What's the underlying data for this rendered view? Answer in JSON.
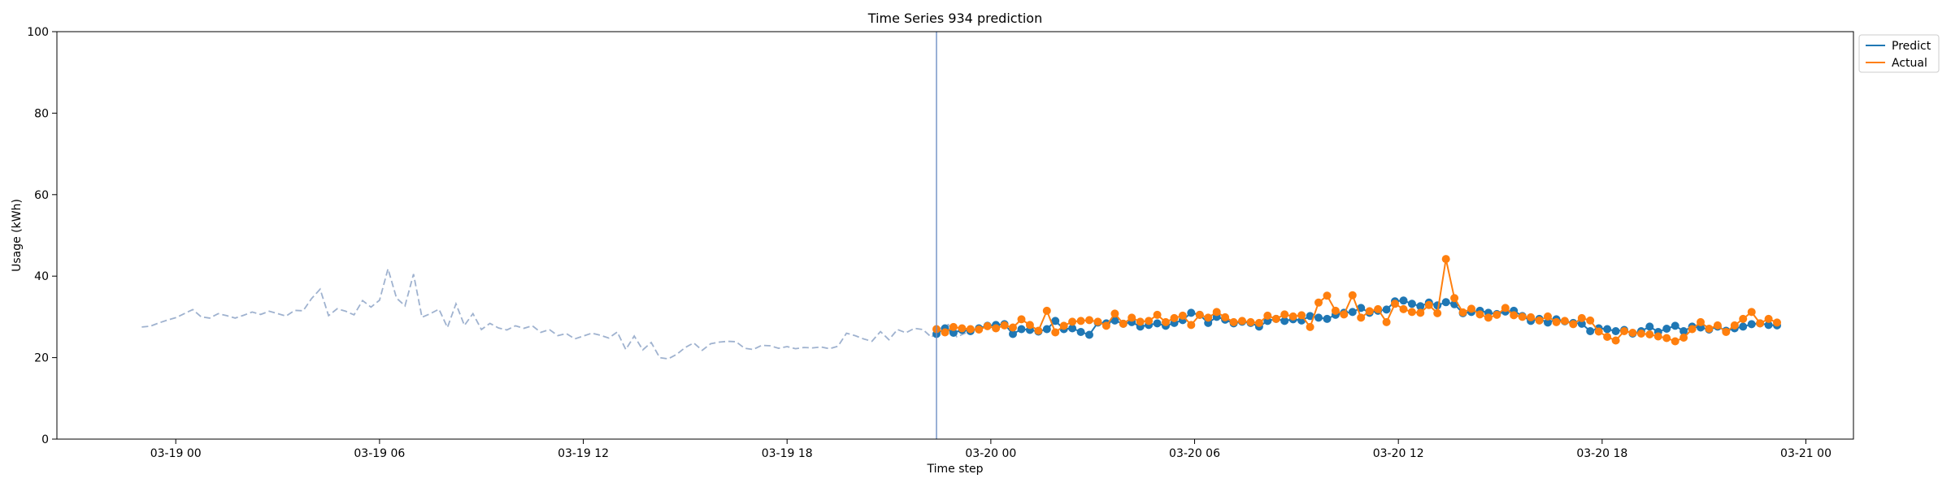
{
  "chart_data": {
    "type": "line",
    "title": "Time Series 934 prediction",
    "xlabel": "Time step",
    "ylabel": "Usage (kWh)",
    "ylim": [
      0,
      100
    ],
    "yticks": [
      0,
      20,
      40,
      60,
      80,
      100
    ],
    "xlim_hours": [
      -3.5,
      49.4
    ],
    "xticks": [
      {
        "hour": 0,
        "label": "03-19 00"
      },
      {
        "hour": 6,
        "label": "03-19 06"
      },
      {
        "hour": 12,
        "label": "03-19 12"
      },
      {
        "hour": 18,
        "label": "03-19 18"
      },
      {
        "hour": 24,
        "label": "03-20 00"
      },
      {
        "hour": 30,
        "label": "03-20 06"
      },
      {
        "hour": 36,
        "label": "03-20 12"
      },
      {
        "hour": 42,
        "label": "03-20 18"
      },
      {
        "hour": 48,
        "label": "03-21 00"
      }
    ],
    "grid": false,
    "legend_position": "outside-top-right",
    "forecast_start_hour": 22.4,
    "history": {
      "start_hour": -1.0,
      "step_hours": 0.25,
      "color": "#9fb2cf",
      "style": "dashed",
      "values": [
        27.5,
        27.7,
        28.5,
        29.2,
        29.8,
        30.8,
        31.8,
        30.0,
        29.7,
        30.8,
        30.3,
        29.7,
        30.4,
        31.2,
        30.6,
        31.4,
        30.8,
        30.2,
        31.6,
        31.5,
        34.5,
        36.8,
        30.3,
        32.0,
        31.4,
        30.5,
        34.0,
        32.4,
        34.1,
        41.8,
        34.6,
        32.7,
        40.5,
        29.9,
        30.8,
        31.9,
        27.4,
        33.2,
        27.9,
        30.8,
        26.9,
        28.4,
        27.3,
        26.8,
        27.8,
        27.2,
        27.8,
        26.2,
        26.9,
        25.4,
        25.9,
        24.6,
        25.3,
        26.0,
        25.5,
        24.8,
        26.3,
        22.0,
        25.3,
        21.9,
        23.7,
        20.0,
        19.7,
        20.8,
        22.5,
        23.6,
        21.8,
        23.4,
        23.8,
        24.0,
        23.9,
        22.3,
        22.0,
        23.0,
        22.9,
        22.3,
        22.7,
        22.2,
        22.5,
        22.4,
        22.6,
        22.2,
        22.8,
        26.0,
        25.4,
        24.6,
        24.0,
        26.4,
        24.4,
        26.9,
        26.1,
        27.2,
        26.9,
        25.0,
        27.1,
        28.1,
        25.1,
        26.0,
        27.5,
        27.0
      ]
    },
    "series": [
      {
        "name": "Predict",
        "color": "#1f77b4",
        "start_hour": 22.4,
        "step_hours": 0.25,
        "values": [
          25.8,
          27.2,
          26.1,
          26.8,
          26.5,
          27.2,
          27.8,
          28.0,
          28.2,
          25.8,
          27.0,
          26.8,
          26.4,
          27.0,
          29.0,
          27.0,
          27.2,
          26.3,
          25.6,
          28.6,
          28.4,
          29.1,
          28.3,
          28.7,
          27.6,
          28.0,
          28.4,
          27.8,
          28.5,
          29.2,
          31.0,
          30.5,
          28.5,
          30.0,
          29.3,
          28.4,
          28.8,
          28.5,
          27.6,
          29.0,
          29.5,
          29.0,
          29.4,
          29.1,
          30.2,
          29.8,
          29.5,
          30.5,
          31.0,
          31.2,
          32.2,
          31.0,
          31.5,
          31.8,
          33.8,
          34.0,
          33.2,
          32.6,
          33.5,
          32.8,
          33.6,
          33.1,
          30.9,
          31.2,
          31.5,
          31.0,
          30.7,
          31.3,
          31.5,
          30.2,
          29.0,
          29.5,
          28.6,
          29.4,
          28.9,
          28.5,
          28.3,
          26.5,
          27.2,
          27.0,
          26.5,
          26.8,
          25.9,
          26.5,
          27.6,
          26.3,
          27.1,
          27.8,
          26.5,
          27.6,
          27.4,
          26.9,
          27.6,
          26.6,
          27.2,
          27.6,
          28.2,
          28.4,
          28.0,
          27.9
        ]
      },
      {
        "name": "Actual",
        "color": "#ff7f0e",
        "start_hour": 22.4,
        "step_hours": 0.25,
        "values": [
          27.0,
          26.2,
          27.5,
          27.2,
          27.0,
          26.9,
          27.7,
          27.2,
          27.9,
          27.4,
          29.4,
          28.0,
          26.6,
          31.5,
          26.2,
          27.8,
          28.8,
          29.0,
          29.2,
          28.8,
          27.8,
          30.8,
          28.3,
          29.8,
          28.8,
          29.0,
          30.5,
          28.7,
          29.7,
          30.3,
          28.0,
          30.5,
          29.8,
          31.2,
          29.9,
          28.7,
          29.0,
          28.7,
          28.5,
          30.3,
          29.5,
          30.6,
          30.1,
          30.4,
          27.5,
          33.5,
          35.2,
          31.5,
          30.6,
          35.3,
          29.8,
          31.4,
          31.9,
          28.7,
          33.2,
          31.9,
          31.2,
          31.0,
          32.9,
          30.9,
          44.2,
          34.6,
          31.1,
          32.0,
          30.6,
          29.8,
          30.5,
          32.2,
          30.4,
          30.0,
          29.9,
          29.1,
          30.1,
          28.7,
          29.0,
          28.2,
          29.7,
          29.1,
          26.4,
          25.1,
          24.2,
          26.5,
          26.1,
          25.9,
          25.7,
          25.2,
          24.8,
          24.0,
          24.9,
          27.0,
          28.7,
          27.1,
          27.9,
          26.3,
          27.9,
          29.5,
          31.2,
          28.4,
          29.5,
          28.6
        ]
      }
    ]
  }
}
